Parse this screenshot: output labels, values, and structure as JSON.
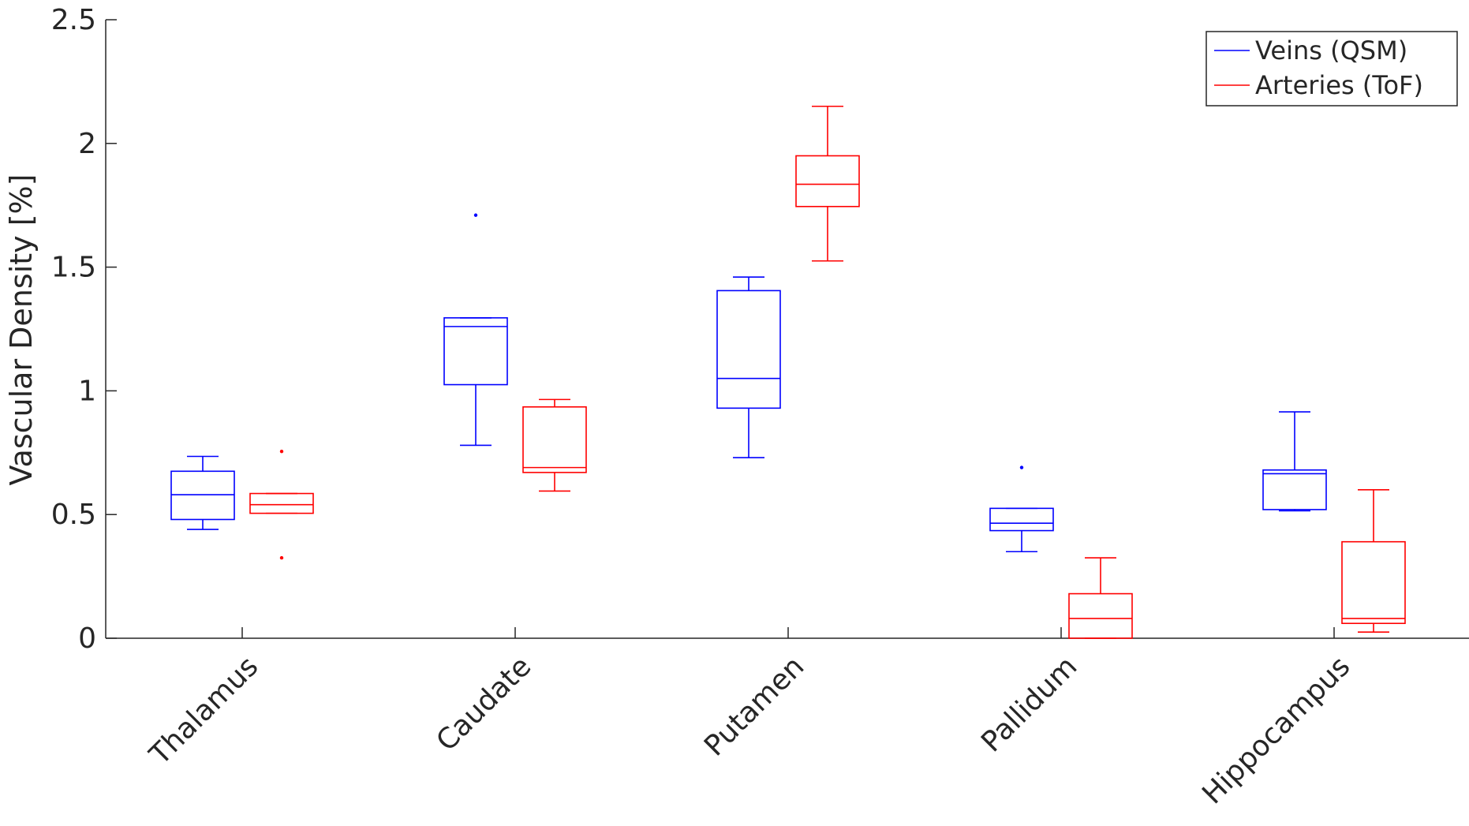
{
  "chart_data": {
    "type": "box",
    "title": "",
    "xlabel": "",
    "ylabel": "Vascular Density [%]",
    "ylim": [
      0,
      2.5
    ],
    "yticks": [
      0,
      0.5,
      1,
      1.5,
      2,
      2.5
    ],
    "ytick_labels": [
      "0",
      "0.5",
      "1",
      "1.5",
      "2",
      "2.5"
    ],
    "categories": [
      "Thalamus",
      "Caudate",
      "Putamen",
      "Pallidum",
      "Hippocampus"
    ],
    "legend_position": "top-right",
    "series": [
      {
        "name": "Veins (QSM)",
        "color": "#0000ff",
        "boxes": [
          {
            "whisker_low": 0.44,
            "q1": 0.48,
            "median": 0.58,
            "q3": 0.675,
            "whisker_high": 0.735,
            "outliers": []
          },
          {
            "whisker_low": 0.78,
            "q1": 1.025,
            "median": 1.26,
            "q3": 1.295,
            "whisker_high": 1.295,
            "outliers": [
              1.71
            ]
          },
          {
            "whisker_low": 0.73,
            "q1": 0.93,
            "median": 1.05,
            "q3": 1.405,
            "whisker_high": 1.46,
            "outliers": []
          },
          {
            "whisker_low": 0.35,
            "q1": 0.435,
            "median": 0.465,
            "q3": 0.525,
            "whisker_high": 0.525,
            "outliers": [
              0.69
            ]
          },
          {
            "whisker_low": 0.515,
            "q1": 0.52,
            "median": 0.665,
            "q3": 0.68,
            "whisker_high": 0.915,
            "outliers": []
          }
        ]
      },
      {
        "name": "Arteries (ToF)",
        "color": "#ff0000",
        "boxes": [
          {
            "whisker_low": 0.505,
            "q1": 0.505,
            "median": 0.54,
            "q3": 0.585,
            "whisker_high": 0.585,
            "outliers": [
              0.755,
              0.325
            ]
          },
          {
            "whisker_low": 0.595,
            "q1": 0.67,
            "median": 0.69,
            "q3": 0.935,
            "whisker_high": 0.965,
            "outliers": []
          },
          {
            "whisker_low": 1.525,
            "q1": 1.745,
            "median": 1.835,
            "q3": 1.95,
            "whisker_high": 2.15,
            "outliers": []
          },
          {
            "whisker_low": 0,
            "q1": 0,
            "median": 0.08,
            "q3": 0.18,
            "whisker_high": 0.325,
            "outliers": []
          },
          {
            "whisker_low": 0.025,
            "q1": 0.06,
            "median": 0.08,
            "q3": 0.39,
            "whisker_high": 0.6,
            "outliers": []
          }
        ]
      }
    ]
  }
}
